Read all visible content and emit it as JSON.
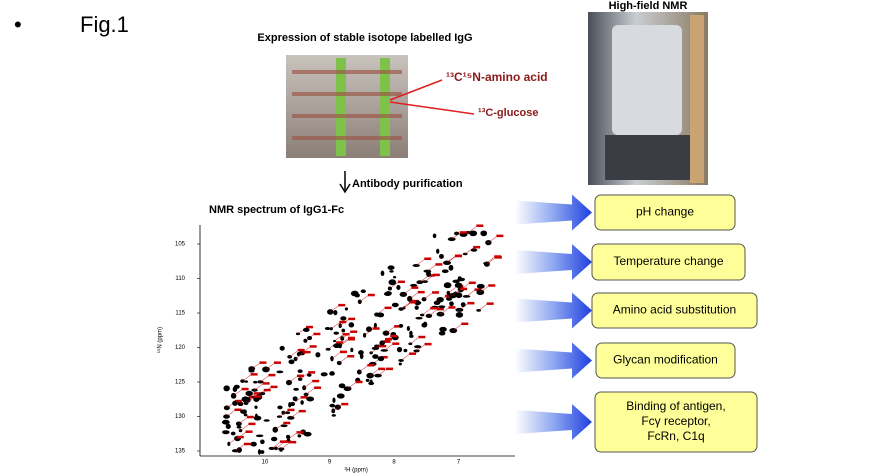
{
  "slide": {
    "bullet": "•",
    "label": "Fig.1"
  },
  "expression": {
    "title": "Expression of stable isotope labelled IgG",
    "label_amino": "¹³C¹⁵N-amino acid",
    "label_glucose": "¹³C-glucose"
  },
  "nmr_photo": {
    "title": "High-field NMR"
  },
  "purification": {
    "label": "Antibody purification"
  },
  "spectrum": {
    "title": "NMR spectrum of IgG1-Fc",
    "yticks": [
      "105",
      "110",
      "115",
      "120",
      "125",
      "130",
      "135"
    ],
    "xticks": [
      "10",
      "9",
      "8",
      "7"
    ],
    "ylabel": "¹⁵N (ppm)",
    "xlabel": "¹H (ppm)"
  },
  "boxes": [
    {
      "lines": [
        "pH change"
      ]
    },
    {
      "lines": [
        "Temperature change"
      ]
    },
    {
      "lines": [
        "Amino acid substitution"
      ]
    },
    {
      "lines": [
        "Glycan modification"
      ]
    },
    {
      "lines": [
        "Binding of antigen,",
        "Fcγ receptor,",
        "FcRn, C1q"
      ]
    }
  ]
}
